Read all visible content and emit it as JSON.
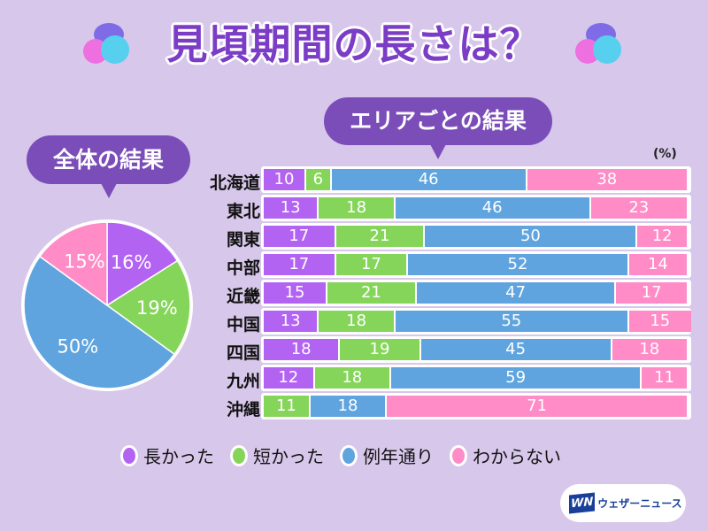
{
  "title": "見頃期間の長さは？",
  "overall_label": "全体の結果",
  "area_label": "エリアごとの結果",
  "unit": "(%)",
  "colors": {
    "long": "#b363f2",
    "short": "#86d55b",
    "normal": "#5fa4de",
    "unknown": "#ff8cc6",
    "bubble": "#7a4db8",
    "title": "#7b3cc6"
  },
  "legend": [
    {
      "label": "長かった",
      "color": "#b363f2"
    },
    {
      "label": "短かった",
      "color": "#86d55b"
    },
    {
      "label": "例年通り",
      "color": "#5fa4de"
    },
    {
      "label": "わからない",
      "color": "#ff8cc6"
    }
  ],
  "logo": {
    "mark": "WN",
    "text": "ウェザーニュース"
  },
  "chart_data": [
    {
      "type": "pie",
      "title": "全体の結果",
      "categories": [
        "長かった",
        "短かった",
        "例年通り",
        "わからない"
      ],
      "values": [
        16,
        19,
        50,
        15
      ],
      "labels": [
        "16%",
        "19%",
        "50%",
        "15%"
      ]
    },
    {
      "type": "bar",
      "stacked": true,
      "orientation": "horizontal",
      "title": "エリアごとの結果",
      "unit": "%",
      "categories": [
        "北海道",
        "東北",
        "関東",
        "中部",
        "近畿",
        "中国",
        "四国",
        "九州",
        "沖縄"
      ],
      "series": [
        {
          "name": "長かった",
          "values": [
            10,
            13,
            17,
            17,
            15,
            13,
            18,
            12,
            0
          ]
        },
        {
          "name": "短かった",
          "values": [
            6,
            18,
            21,
            17,
            21,
            18,
            19,
            18,
            11
          ]
        },
        {
          "name": "例年通り",
          "values": [
            46,
            46,
            50,
            52,
            47,
            55,
            45,
            59,
            18
          ]
        },
        {
          "name": "わからない",
          "values": [
            38,
            23,
            12,
            14,
            17,
            15,
            18,
            11,
            71
          ]
        }
      ]
    }
  ]
}
